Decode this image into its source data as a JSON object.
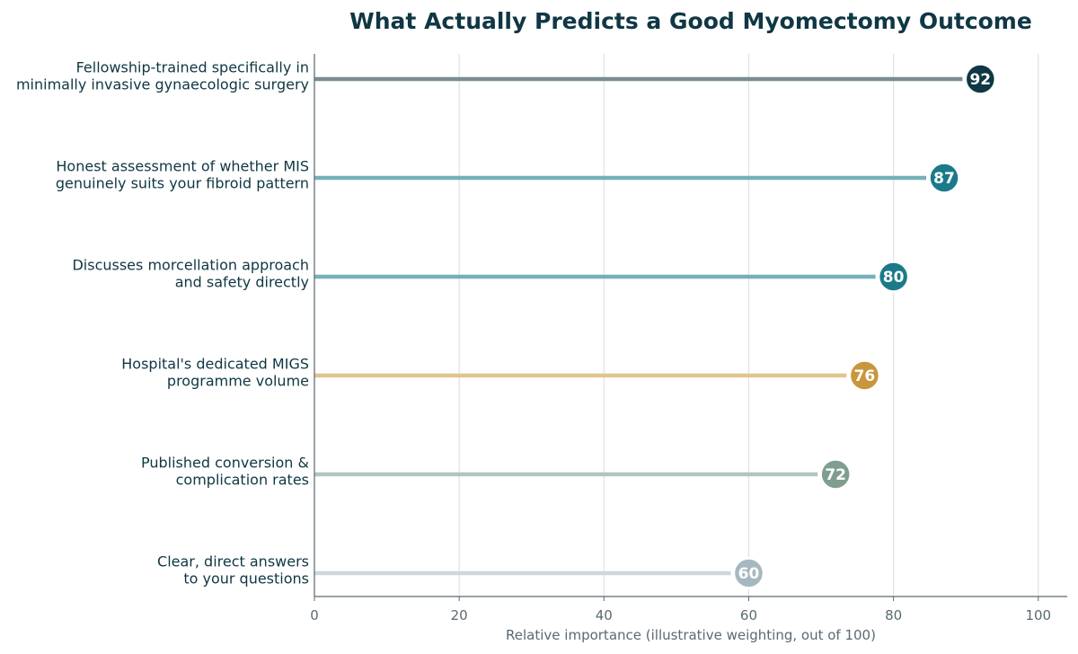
{
  "chart_data": {
    "type": "lollipop",
    "title": "What Actually Predicts a Good Myomectomy Outcome",
    "xlabel": "Relative importance (illustrative weighting, out of 100)",
    "xlim": [
      0,
      104
    ],
    "xticks": [
      0,
      20,
      40,
      60,
      80,
      100
    ],
    "grid": "vertical",
    "categories": [
      [
        "Fellowship-trained specifically in",
        "minimally invasive gynaecologic surgery"
      ],
      [
        "Honest assessment of whether MIS",
        "genuinely suits your fibroid pattern"
      ],
      [
        "Discusses morcellation approach",
        "and safety directly"
      ],
      [
        "Hospital's dedicated MIGS",
        "programme volume"
      ],
      [
        "Published conversion &",
        "complication rates"
      ],
      [
        "Clear, direct answers",
        "to your questions"
      ]
    ],
    "values": [
      92,
      87,
      80,
      76,
      72,
      60
    ],
    "colors": [
      "#0f3744",
      "#1b7a8a",
      "#1b7a8a",
      "#c8963c",
      "#7f9e90",
      "#a6b8bf"
    ],
    "stem_colors": [
      "#7a8c93",
      "#76b0b8",
      "#76b0b8",
      "#e2c48f",
      "#b3c4bd",
      "#cbd8dc"
    ]
  }
}
